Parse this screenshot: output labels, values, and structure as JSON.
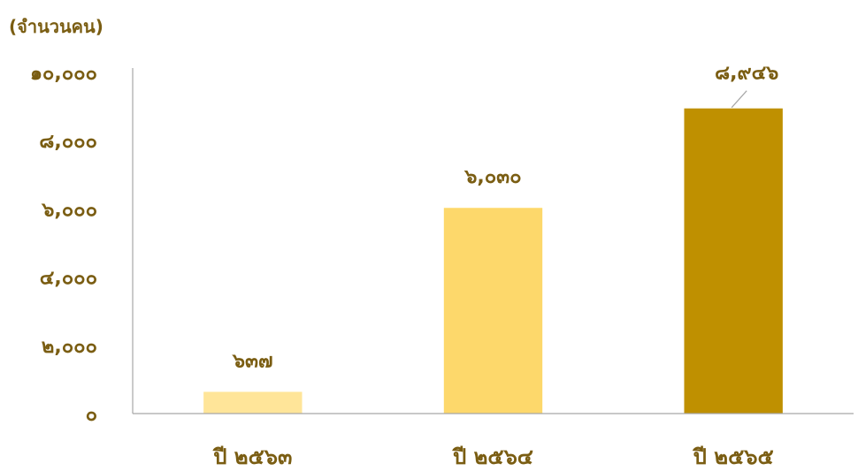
{
  "chart_data": {
    "type": "bar",
    "unit_label": "(จำนวนคน)",
    "categories": [
      "ปี ๒๕๖๓",
      "ปี ๒๕๖๔",
      "ปี ๒๕๖๕"
    ],
    "values": [
      637,
      6030,
      8946
    ],
    "value_labels": [
      "๖๓๗",
      "๖,๐๓๐",
      "๘,๙๔๖"
    ],
    "bar_colors": [
      "#ffe599",
      "#fdd86b",
      "#bf9000"
    ],
    "ylim": [
      0,
      10000
    ],
    "yticks": [
      0,
      2000,
      4000,
      6000,
      8000,
      10000
    ],
    "ytick_labels": [
      "๐",
      "๒,๐๐๐",
      "๔,๐๐๐",
      "๖,๐๐๐",
      "๘,๐๐๐",
      "๑๐,๐๐๐"
    ],
    "grid": false,
    "text_color": "#7a5d12",
    "axis_color": "#a6a6a6"
  }
}
